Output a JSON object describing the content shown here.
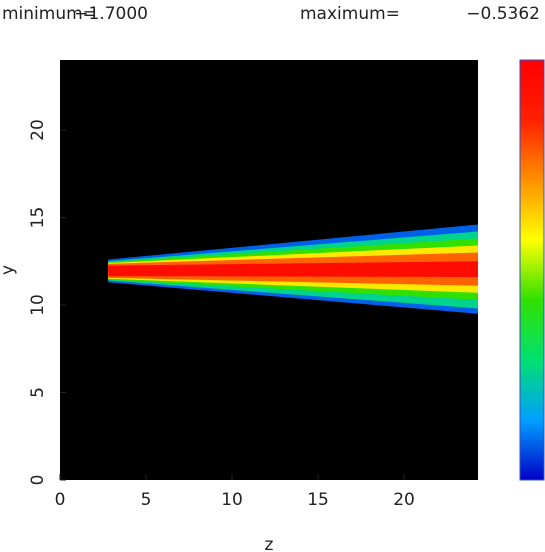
{
  "chart_data": {
    "type": "contour-fill",
    "min_label": "minimum=",
    "min": {
      "value": -1.7,
      "label": "−1.7000"
    },
    "max_label": "maximum=",
    "max": {
      "value": -0.5362,
      "label": "−0.5362"
    },
    "x_label": "z",
    "y_label": "y",
    "xlim": [
      0,
      24.3
    ],
    "ylim": [
      0,
      24
    ],
    "xticks": [
      0,
      5,
      10,
      15,
      20
    ],
    "yticks": [
      0,
      5,
      10,
      15,
      20
    ],
    "background": "#000000",
    "colormap": [
      "#0000c8",
      "#00a0ff",
      "#00e070",
      "#30e000",
      "#ffff00",
      "#ff9000",
      "#ff2000",
      "#ff0000"
    ],
    "bands": [
      {
        "value": -1.6,
        "z": [
          2.8,
          24.3
        ],
        "y_lower": [
          11.3,
          9.5
        ],
        "y_upper": [
          12.6,
          14.6
        ]
      },
      {
        "value": -1.4,
        "z": [
          2.8,
          24.3
        ],
        "y_lower": [
          11.4,
          9.8
        ],
        "y_upper": [
          12.5,
          14.2
        ]
      },
      {
        "value": -1.2,
        "z": [
          2.8,
          24.3
        ],
        "y_lower": [
          11.45,
          10.3
        ],
        "y_upper": [
          12.45,
          13.8
        ]
      },
      {
        "value": -1.0,
        "z": [
          2.8,
          24.3
        ],
        "y_lower": [
          11.5,
          10.7
        ],
        "y_upper": [
          12.4,
          13.4
        ]
      },
      {
        "value": -0.8,
        "z": [
          2.8,
          24.3
        ],
        "y_lower": [
          11.55,
          11.1
        ],
        "y_upper": [
          12.35,
          13.0
        ]
      },
      {
        "value": -0.6,
        "z": [
          2.8,
          24.3
        ],
        "y_lower": [
          11.65,
          11.6
        ],
        "y_upper": [
          12.25,
          12.5
        ]
      }
    ]
  }
}
